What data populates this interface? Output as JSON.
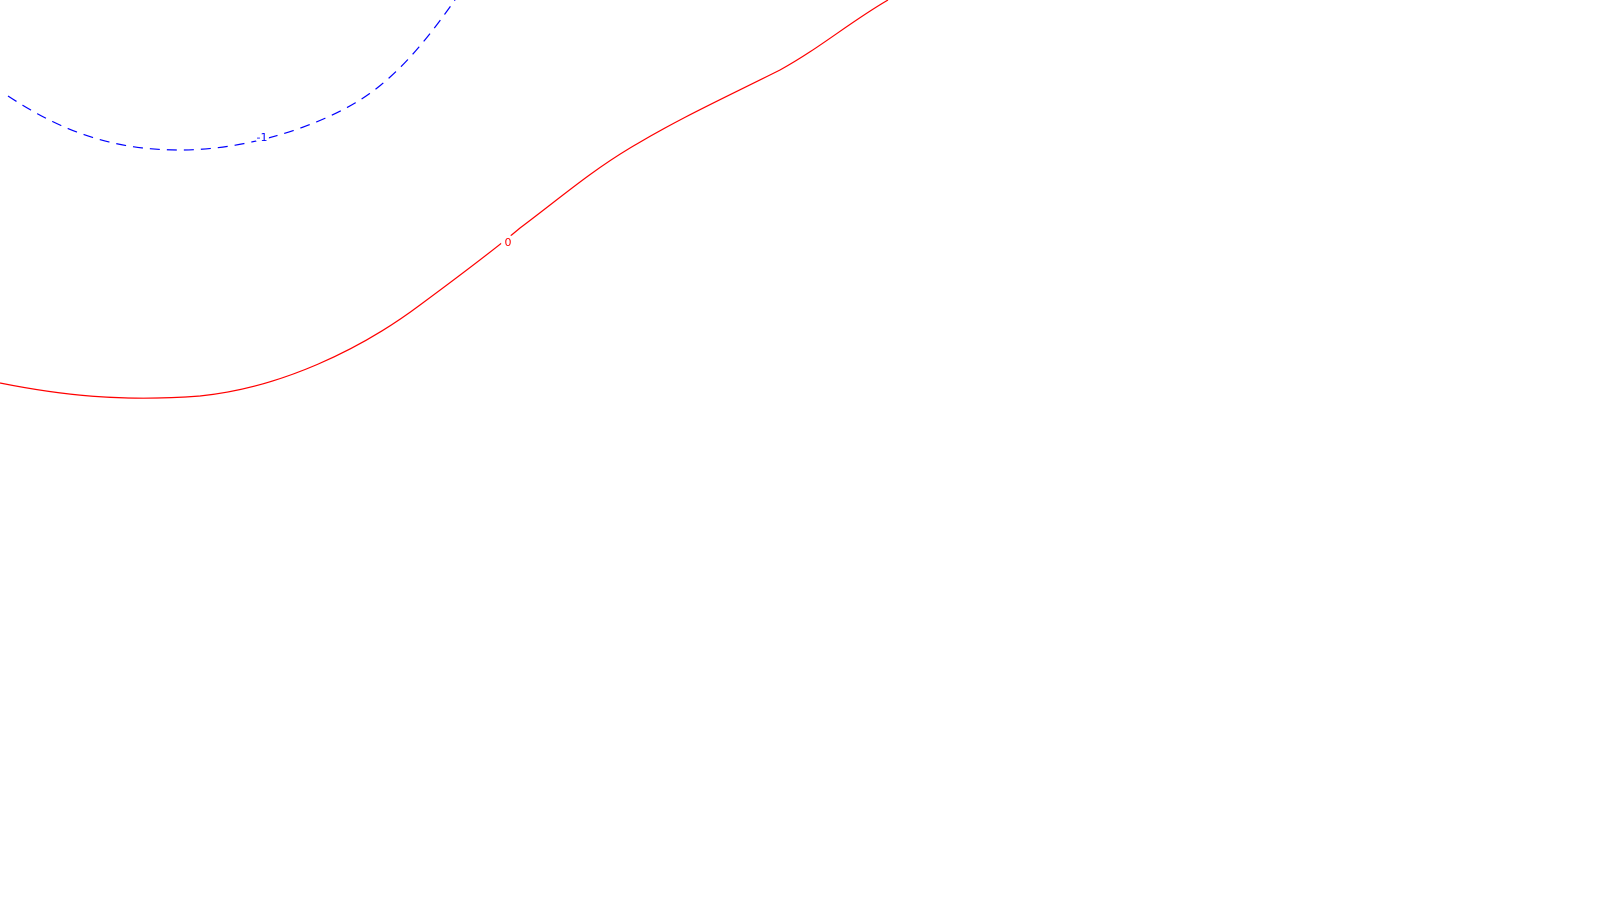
{
  "chart_data": {
    "type": "contour",
    "colors": {
      "negative": "#0000ff",
      "zero": "#ff0000"
    },
    "series": [
      {
        "level": -1,
        "label": "-1",
        "line_style": "dashed",
        "color": "#0000ff"
      },
      {
        "level": 0,
        "label": "0",
        "line_style": "solid",
        "color": "#ff0000"
      }
    ]
  }
}
